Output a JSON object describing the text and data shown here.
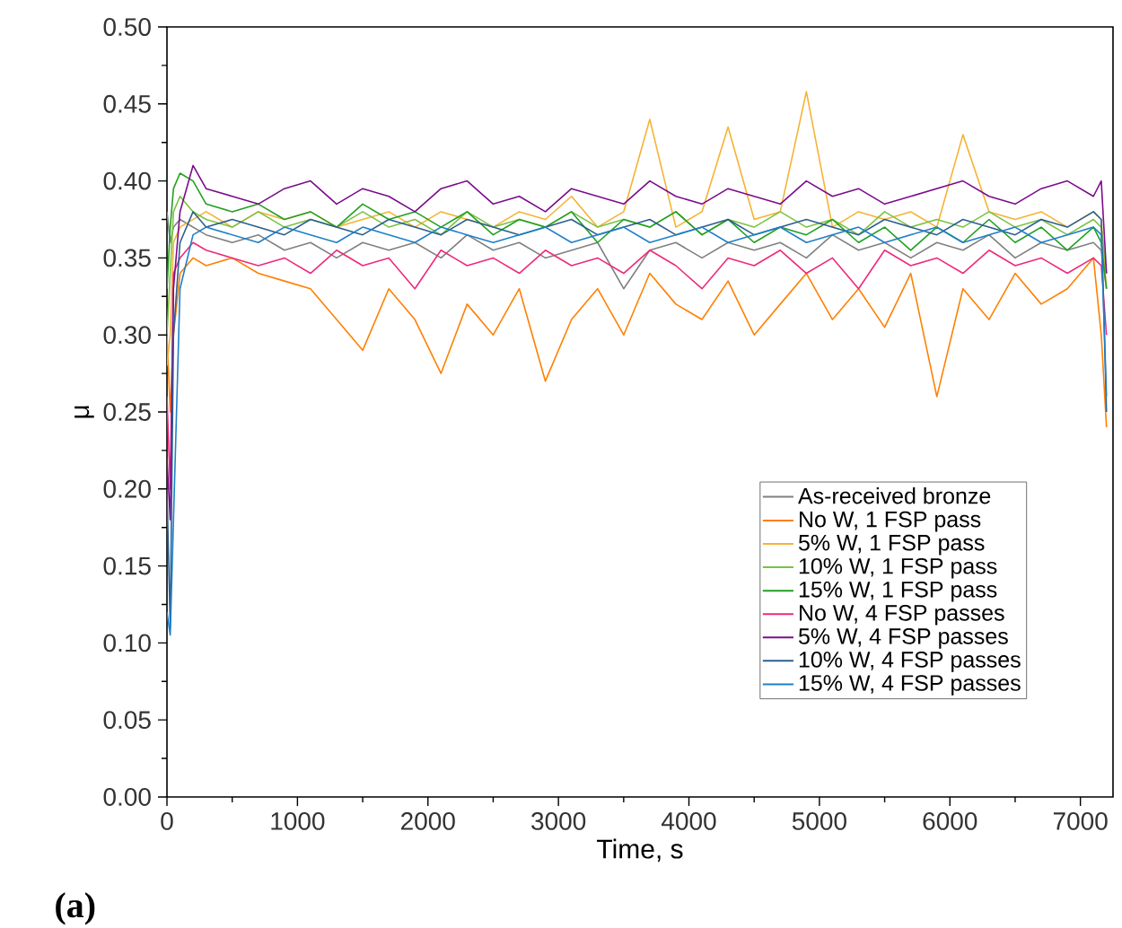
{
  "chart_data": {
    "type": "line",
    "xlabel": "Time, s",
    "ylabel": "μ",
    "annotations": [
      "(a)"
    ],
    "xlim": [
      0,
      7250
    ],
    "ylim": [
      0,
      0.5
    ],
    "xticks": [
      0,
      1000,
      2000,
      3000,
      4000,
      5000,
      6000,
      7000
    ],
    "yticks": [
      {
        "value": 0,
        "label": "0.00"
      },
      {
        "value": 0.05,
        "label": "0.05"
      },
      {
        "value": 0.1,
        "label": "0.10"
      },
      {
        "value": 0.15,
        "label": "0.15"
      },
      {
        "value": 0.2,
        "label": "0.20"
      },
      {
        "value": 0.25,
        "label": "0.25"
      },
      {
        "value": 0.3,
        "label": "0.30"
      },
      {
        "value": 0.35,
        "label": "0.35"
      },
      {
        "value": 0.4,
        "label": "0.40"
      },
      {
        "value": 0.45,
        "label": "0.45"
      },
      {
        "value": 0.5,
        "label": "0.50"
      }
    ],
    "legend": "bottom right",
    "grid": false,
    "x": [
      0,
      25,
      50,
      100,
      200,
      300,
      500,
      700,
      900,
      1100,
      1300,
      1500,
      1700,
      1900,
      2100,
      2300,
      2500,
      2700,
      2900,
      3100,
      3300,
      3500,
      3700,
      3900,
      4100,
      4300,
      4500,
      4700,
      4900,
      5100,
      5300,
      5500,
      5700,
      5900,
      6100,
      6300,
      6500,
      6700,
      6900,
      7100,
      7160,
      7200
    ],
    "series": [
      {
        "name": "As-received bronze",
        "color": "#808080",
        "values": [
          0.38,
          0.36,
          0.37,
          0.375,
          0.37,
          0.365,
          0.36,
          0.365,
          0.355,
          0.36,
          0.35,
          0.36,
          0.355,
          0.36,
          0.35,
          0.365,
          0.355,
          0.36,
          0.35,
          0.355,
          0.36,
          0.33,
          0.355,
          0.36,
          0.35,
          0.36,
          0.355,
          0.36,
          0.35,
          0.365,
          0.355,
          0.36,
          0.35,
          0.36,
          0.355,
          0.365,
          0.35,
          0.36,
          0.355,
          0.36,
          0.355,
          0.33
        ]
      },
      {
        "name": "No W, 1 FSP pass",
        "color": "#ff8000",
        "values": [
          0.3,
          0.25,
          0.3,
          0.34,
          0.35,
          0.345,
          0.35,
          0.34,
          0.335,
          0.33,
          0.31,
          0.29,
          0.33,
          0.31,
          0.275,
          0.32,
          0.3,
          0.33,
          0.27,
          0.31,
          0.33,
          0.3,
          0.34,
          0.32,
          0.31,
          0.335,
          0.3,
          0.32,
          0.34,
          0.31,
          0.33,
          0.305,
          0.34,
          0.26,
          0.33,
          0.31,
          0.34,
          0.32,
          0.33,
          0.35,
          0.3,
          0.24
        ]
      },
      {
        "name": "5% W, 1 FSP pass",
        "color": "#f5b335",
        "values": [
          0.28,
          0.3,
          0.36,
          0.37,
          0.375,
          0.38,
          0.37,
          0.38,
          0.375,
          0.38,
          0.37,
          0.375,
          0.38,
          0.37,
          0.38,
          0.375,
          0.37,
          0.38,
          0.375,
          0.39,
          0.37,
          0.38,
          0.44,
          0.37,
          0.38,
          0.435,
          0.375,
          0.38,
          0.458,
          0.37,
          0.38,
          0.375,
          0.38,
          0.37,
          0.43,
          0.38,
          0.375,
          0.38,
          0.37,
          0.38,
          0.375,
          0.33
        ]
      },
      {
        "name": "10% W, 1 FSP pass",
        "color": "#7cc242",
        "values": [
          0.3,
          0.34,
          0.38,
          0.39,
          0.38,
          0.375,
          0.37,
          0.38,
          0.37,
          0.375,
          0.37,
          0.38,
          0.37,
          0.375,
          0.365,
          0.38,
          0.37,
          0.375,
          0.37,
          0.38,
          0.37,
          0.375,
          0.37,
          0.38,
          0.365,
          0.375,
          0.37,
          0.38,
          0.37,
          0.375,
          0.365,
          0.38,
          0.37,
          0.375,
          0.37,
          0.38,
          0.37,
          0.375,
          0.365,
          0.375,
          0.37,
          0.34
        ]
      },
      {
        "name": "15% W, 1 FSP pass",
        "color": "#22a022",
        "values": [
          0.33,
          0.37,
          0.395,
          0.405,
          0.4,
          0.385,
          0.38,
          0.385,
          0.375,
          0.38,
          0.37,
          0.385,
          0.375,
          0.38,
          0.37,
          0.38,
          0.365,
          0.375,
          0.37,
          0.38,
          0.36,
          0.375,
          0.37,
          0.38,
          0.365,
          0.375,
          0.36,
          0.37,
          0.365,
          0.375,
          0.36,
          0.37,
          0.355,
          0.37,
          0.36,
          0.375,
          0.36,
          0.37,
          0.355,
          0.37,
          0.36,
          0.33
        ]
      },
      {
        "name": "No W, 4 FSP passes",
        "color": "#ee2a7b",
        "values": [
          0.26,
          0.2,
          0.34,
          0.35,
          0.36,
          0.355,
          0.35,
          0.345,
          0.35,
          0.34,
          0.355,
          0.345,
          0.35,
          0.33,
          0.355,
          0.345,
          0.35,
          0.34,
          0.355,
          0.345,
          0.35,
          0.34,
          0.355,
          0.345,
          0.33,
          0.35,
          0.345,
          0.355,
          0.34,
          0.35,
          0.33,
          0.355,
          0.345,
          0.35,
          0.34,
          0.355,
          0.345,
          0.35,
          0.34,
          0.35,
          0.345,
          0.3
        ]
      },
      {
        "name": "5% W, 4 FSP passes",
        "color": "#7b0c8c",
        "values": [
          0.22,
          0.18,
          0.33,
          0.38,
          0.41,
          0.395,
          0.39,
          0.385,
          0.395,
          0.4,
          0.385,
          0.395,
          0.39,
          0.38,
          0.395,
          0.4,
          0.385,
          0.39,
          0.38,
          0.395,
          0.39,
          0.385,
          0.4,
          0.39,
          0.385,
          0.395,
          0.39,
          0.385,
          0.4,
          0.39,
          0.395,
          0.385,
          0.39,
          0.395,
          0.4,
          0.39,
          0.385,
          0.395,
          0.4,
          0.39,
          0.4,
          0.34
        ]
      },
      {
        "name": "10% W, 4 FSP passes",
        "color": "#2e5f8f",
        "values": [
          0.2,
          0.11,
          0.3,
          0.36,
          0.38,
          0.37,
          0.375,
          0.37,
          0.365,
          0.375,
          0.37,
          0.365,
          0.375,
          0.37,
          0.365,
          0.375,
          0.37,
          0.365,
          0.37,
          0.375,
          0.365,
          0.37,
          0.375,
          0.365,
          0.37,
          0.375,
          0.365,
          0.37,
          0.375,
          0.37,
          0.365,
          0.375,
          0.37,
          0.365,
          0.375,
          0.37,
          0.365,
          0.375,
          0.37,
          0.38,
          0.375,
          0.25
        ]
      },
      {
        "name": "15% W, 4 FSP passes",
        "color": "#1f7fc8",
        "values": [
          0.12,
          0.105,
          0.18,
          0.33,
          0.365,
          0.37,
          0.365,
          0.36,
          0.37,
          0.365,
          0.36,
          0.37,
          0.365,
          0.36,
          0.37,
          0.365,
          0.36,
          0.365,
          0.37,
          0.36,
          0.365,
          0.37,
          0.36,
          0.365,
          0.37,
          0.36,
          0.365,
          0.37,
          0.36,
          0.365,
          0.37,
          0.36,
          0.365,
          0.37,
          0.36,
          0.365,
          0.37,
          0.36,
          0.365,
          0.37,
          0.365,
          0.26
        ]
      }
    ]
  }
}
